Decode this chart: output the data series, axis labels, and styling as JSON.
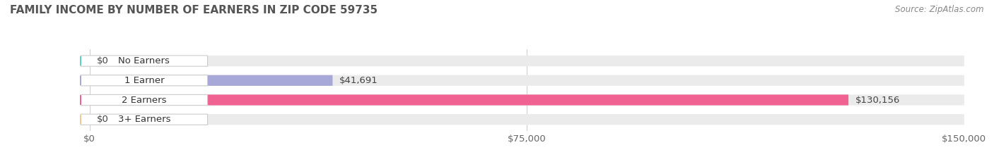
{
  "title": "FAMILY INCOME BY NUMBER OF EARNERS IN ZIP CODE 59735",
  "source": "Source: ZipAtlas.com",
  "categories": [
    "No Earners",
    "1 Earner",
    "2 Earners",
    "3+ Earners"
  ],
  "values": [
    0,
    41691,
    130156,
    0
  ],
  "bar_colors": [
    "#5ecfca",
    "#a8a8d8",
    "#f06292",
    "#f5c897"
  ],
  "bar_bg_color": "#ebebeb",
  "xlim": [
    0,
    150000
  ],
  "xticks": [
    0,
    75000,
    150000
  ],
  "xtick_labels": [
    "$0",
    "$75,000",
    "$150,000"
  ],
  "title_fontsize": 11,
  "title_color": "#555555",
  "label_fontsize": 9.5,
  "value_fontsize": 9.5,
  "source_fontsize": 8.5,
  "source_color": "#888888",
  "bar_height": 0.55,
  "fig_bg_color": "#ffffff"
}
